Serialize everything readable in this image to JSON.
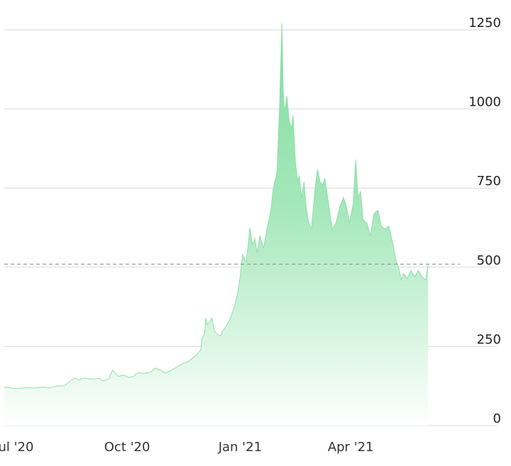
{
  "chart_data": {
    "type": "area",
    "title": "",
    "xlabel": "",
    "ylabel": "",
    "ylim": [
      0,
      1250
    ],
    "xlim": [
      "2020-06-23",
      "2021-06-15"
    ],
    "grid": true,
    "y_axis_side": "right",
    "y_ticks": [
      {
        "value": 0,
        "label": "0"
      },
      {
        "value": 250,
        "label": "250"
      },
      {
        "value": 500,
        "label": "500"
      },
      {
        "value": 750,
        "label": "750"
      },
      {
        "value": 1000,
        "label": "1000"
      },
      {
        "value": 1250,
        "label": "1250"
      }
    ],
    "x_ticks": [
      {
        "date": "2020-07-01",
        "label": "Jul '20"
      },
      {
        "date": "2020-10-01",
        "label": "Oct '20"
      },
      {
        "date": "2021-01-01",
        "label": "Jan '21"
      },
      {
        "date": "2021-04-01",
        "label": "Apr '21"
      }
    ],
    "reference_line": {
      "value": 510,
      "style": "dashed"
    },
    "colors": {
      "area_top": "#7fdc9f",
      "area_bottom": "#ffffff",
      "grid": "#d9d9d9",
      "reference": "#888888"
    },
    "series": [
      {
        "points": [
          [
            "2020-06-23",
            120
          ],
          [
            "2020-06-26",
            122
          ],
          [
            "2020-06-30",
            117
          ],
          [
            "2020-07-06",
            118
          ],
          [
            "2020-07-12",
            120
          ],
          [
            "2020-07-18",
            118
          ],
          [
            "2020-07-24",
            122
          ],
          [
            "2020-07-30",
            119
          ],
          [
            "2020-08-05",
            125
          ],
          [
            "2020-08-11",
            126
          ],
          [
            "2020-08-15",
            138
          ],
          [
            "2020-08-19",
            150
          ],
          [
            "2020-08-23",
            145
          ],
          [
            "2020-08-27",
            150
          ],
          [
            "2020-08-31",
            148
          ],
          [
            "2020-09-04",
            146
          ],
          [
            "2020-09-08",
            150
          ],
          [
            "2020-09-11",
            141
          ],
          [
            "2020-09-16",
            147
          ],
          [
            "2020-09-19",
            175
          ],
          [
            "2020-09-24",
            155
          ],
          [
            "2020-09-28",
            160
          ],
          [
            "2020-10-02",
            152
          ],
          [
            "2020-10-06",
            155
          ],
          [
            "2020-10-10",
            168
          ],
          [
            "2020-10-14",
            165
          ],
          [
            "2020-10-20",
            168
          ],
          [
            "2020-10-24",
            182
          ],
          [
            "2020-10-28",
            175
          ],
          [
            "2020-11-01",
            166
          ],
          [
            "2020-11-06",
            175
          ],
          [
            "2020-11-12",
            188
          ],
          [
            "2020-11-16",
            198
          ],
          [
            "2020-11-19",
            200
          ],
          [
            "2020-11-24",
            215
          ],
          [
            "2020-11-27",
            225
          ],
          [
            "2020-11-30",
            240
          ],
          [
            "2020-12-01",
            275
          ],
          [
            "2020-12-03",
            290
          ],
          [
            "2020-12-04",
            340
          ],
          [
            "2020-12-05",
            320
          ],
          [
            "2020-12-07",
            325
          ],
          [
            "2020-12-09",
            340
          ],
          [
            "2020-12-11",
            300
          ],
          [
            "2020-12-13",
            290
          ],
          [
            "2020-12-16",
            283
          ],
          [
            "2020-12-18",
            300
          ],
          [
            "2020-12-20",
            310
          ],
          [
            "2020-12-23",
            330
          ],
          [
            "2020-12-25",
            350
          ],
          [
            "2020-12-28",
            385
          ],
          [
            "2020-12-30",
            420
          ],
          [
            "2021-01-01",
            470
          ],
          [
            "2021-01-03",
            540
          ],
          [
            "2021-01-06",
            515
          ],
          [
            "2021-01-09",
            625
          ],
          [
            "2021-01-11",
            570
          ],
          [
            "2021-01-13",
            590
          ],
          [
            "2021-01-15",
            545
          ],
          [
            "2021-01-17",
            600
          ],
          [
            "2021-01-20",
            560
          ],
          [
            "2021-01-23",
            625
          ],
          [
            "2021-01-26",
            680
          ],
          [
            "2021-01-28",
            750
          ],
          [
            "2021-01-31",
            800
          ],
          [
            "2021-02-02",
            1000
          ],
          [
            "2021-02-04",
            1270
          ],
          [
            "2021-02-05",
            1060
          ],
          [
            "2021-02-06",
            990
          ],
          [
            "2021-02-08",
            1040
          ],
          [
            "2021-02-10",
            960
          ],
          [
            "2021-02-12",
            940
          ],
          [
            "2021-02-13",
            980
          ],
          [
            "2021-02-15",
            830
          ],
          [
            "2021-02-17",
            770
          ],
          [
            "2021-02-18",
            790
          ],
          [
            "2021-02-20",
            720
          ],
          [
            "2021-02-22",
            770
          ],
          [
            "2021-02-24",
            680
          ],
          [
            "2021-02-26",
            640
          ],
          [
            "2021-02-28",
            620
          ],
          [
            "2021-03-03",
            750
          ],
          [
            "2021-03-05",
            810
          ],
          [
            "2021-03-07",
            770
          ],
          [
            "2021-03-09",
            760
          ],
          [
            "2021-03-11",
            780
          ],
          [
            "2021-03-14",
            700
          ],
          [
            "2021-03-17",
            620
          ],
          [
            "2021-03-20",
            640
          ],
          [
            "2021-03-23",
            690
          ],
          [
            "2021-03-26",
            720
          ],
          [
            "2021-03-28",
            700
          ],
          [
            "2021-03-31",
            640
          ],
          [
            "2021-04-03",
            700
          ],
          [
            "2021-04-05",
            840
          ],
          [
            "2021-04-07",
            720
          ],
          [
            "2021-04-09",
            740
          ],
          [
            "2021-04-11",
            650
          ],
          [
            "2021-04-14",
            640
          ],
          [
            "2021-04-17",
            600
          ],
          [
            "2021-04-20",
            670
          ],
          [
            "2021-04-23",
            680
          ],
          [
            "2021-04-26",
            630
          ],
          [
            "2021-04-29",
            620
          ],
          [
            "2021-05-02",
            630
          ],
          [
            "2021-05-05",
            580
          ],
          [
            "2021-05-08",
            520
          ],
          [
            "2021-05-10",
            500
          ],
          [
            "2021-05-12",
            460
          ],
          [
            "2021-05-14",
            480
          ],
          [
            "2021-05-17",
            465
          ],
          [
            "2021-05-20",
            490
          ],
          [
            "2021-05-23",
            470
          ],
          [
            "2021-05-26",
            490
          ],
          [
            "2021-05-29",
            470
          ],
          [
            "2021-06-01",
            460
          ],
          [
            "2021-06-03",
            510
          ]
        ]
      }
    ]
  }
}
